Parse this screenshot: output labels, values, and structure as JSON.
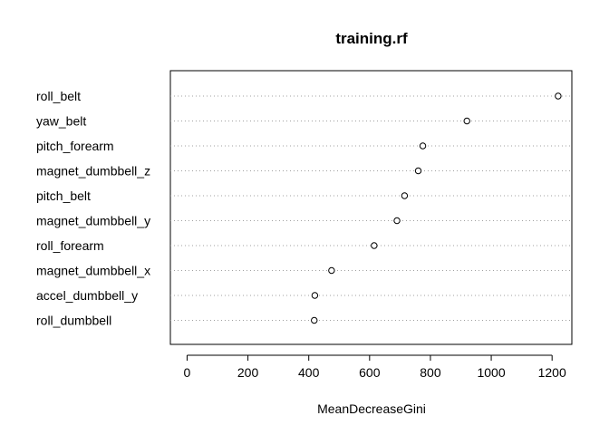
{
  "chart_data": {
    "type": "scatter",
    "title": "training.rf",
    "xlabel": "MeanDecreaseGini",
    "ylabel": "",
    "xlim": [
      -55,
      1265
    ],
    "xticks": [
      "0",
      "200",
      "400",
      "600",
      "800",
      "1000",
      "1200"
    ],
    "grid": "dotted horizontal guide lines",
    "categories": [
      "roll_belt",
      "yaw_belt",
      "pitch_forearm",
      "magnet_dumbbell_z",
      "pitch_belt",
      "magnet_dumbbell_y",
      "roll_forearm",
      "magnet_dumbbell_x",
      "accel_dumbbell_y",
      "roll_dumbbell"
    ],
    "values": [
      1220,
      920,
      775,
      760,
      715,
      690,
      615,
      475,
      420,
      418
    ]
  },
  "colors": {
    "axis": "#000000",
    "grid": "#a0a0a0",
    "point": "#000000"
  }
}
